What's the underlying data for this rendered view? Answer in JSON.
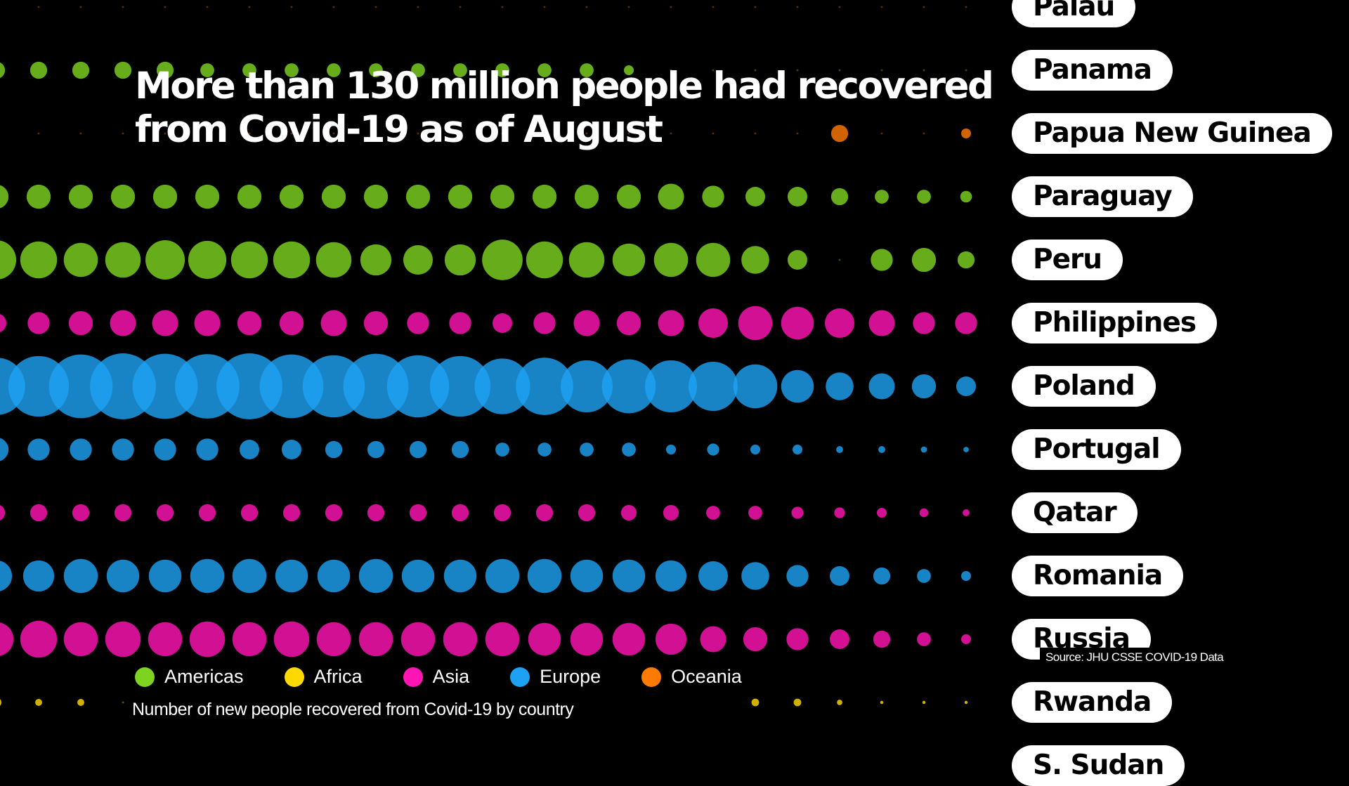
{
  "title": "More than 130 million people had recovered from Covid-19 as of August",
  "subtitle": "Number of new people recovered from Covid-19 by country",
  "source": "Source: JHU CSSE COVID-19 Data",
  "legend": [
    {
      "label": "Americas",
      "color": "#7ED321"
    },
    {
      "label": "Africa",
      "color": "#FFD800"
    },
    {
      "label": "Asia",
      "color": "#FF14B4"
    },
    {
      "label": "Europe",
      "color": "#1DA1F2"
    },
    {
      "label": "Oceania",
      "color": "#FF7A00"
    }
  ],
  "chart_data": {
    "type": "scatter",
    "description_of_encoding": "",
    "countries": [
      "Palau",
      "Panama",
      "Papua New Guinea",
      "Paraguay",
      "Peru",
      "Philippines",
      "Poland",
      "Portugal",
      "Qatar",
      "Romania",
      "Russia",
      "Rwanda",
      "S. Sudan"
    ],
    "series": [
      {
        "country": "Palau",
        "region": "Oceania",
        "values": [
          0,
          0,
          0,
          0,
          0,
          0,
          0,
          0,
          0,
          0,
          0,
          0,
          0,
          0,
          0,
          0,
          0,
          0,
          0,
          0,
          0,
          0,
          0,
          0
        ]
      },
      {
        "country": "Panama",
        "region": "Americas",
        "values": [
          3,
          3,
          3,
          3,
          3,
          2,
          2,
          2,
          2,
          2,
          2,
          2,
          2,
          2,
          2,
          1,
          0,
          0,
          0,
          0,
          0,
          0,
          0,
          0
        ]
      },
      {
        "country": "Papua New Guinea",
        "region": "Oceania",
        "values": [
          0,
          0,
          0,
          0,
          0,
          0,
          0,
          0,
          0,
          0,
          0,
          0,
          0,
          0,
          0,
          0,
          0,
          0,
          0,
          0,
          3,
          0,
          0,
          1
        ]
      },
      {
        "country": "Paraguay",
        "region": "Americas",
        "values": [
          6,
          6,
          6,
          6,
          6,
          6,
          6,
          6,
          6,
          6,
          6,
          6,
          6,
          6,
          6,
          6,
          7,
          5,
          4,
          4,
          3,
          2,
          2,
          1.4
        ]
      },
      {
        "country": "Peru",
        "region": "Americas",
        "values": [
          16,
          14,
          12,
          13,
          16,
          15,
          14,
          14,
          13,
          10,
          9,
          10,
          17,
          14,
          13,
          11,
          12,
          12,
          8,
          4,
          0,
          5,
          6,
          3
        ]
      },
      {
        "country": "Philippines",
        "region": "Asia",
        "values": [
          4,
          5,
          6,
          7,
          7,
          7,
          6,
          6,
          7,
          6,
          5,
          5,
          4,
          5,
          7,
          6,
          7,
          9,
          12,
          11,
          9,
          7,
          5,
          5
        ]
      },
      {
        "country": "Poland",
        "region": "Europe",
        "values": [
          34,
          38,
          42,
          45,
          44,
          43,
          45,
          42,
          40,
          44,
          40,
          38,
          32,
          34,
          28,
          30,
          28,
          25,
          20,
          11,
          8,
          7,
          6,
          4
        ]
      },
      {
        "country": "Portugal",
        "region": "Europe",
        "values": [
          6,
          5,
          5,
          5,
          5,
          5,
          4,
          4,
          3,
          3,
          3,
          3,
          2,
          2,
          2,
          2,
          1,
          1.5,
          1,
          1,
          0.5,
          0.5,
          0.4,
          0.3
        ]
      },
      {
        "country": "Qatar",
        "region": "Asia",
        "values": [
          3,
          3,
          3,
          3,
          3,
          3,
          3,
          3,
          3,
          3,
          3,
          3,
          3,
          3,
          3,
          2.5,
          2.5,
          2,
          2,
          1.5,
          1.2,
          1,
          0.8,
          0.5
        ]
      },
      {
        "country": "Romania",
        "region": "Europe",
        "values": [
          10,
          10,
          12,
          11,
          11,
          12,
          12,
          11,
          11,
          12,
          11,
          11,
          12,
          12,
          11,
          11,
          10,
          9,
          8,
          5,
          4,
          3,
          2,
          1
        ]
      },
      {
        "country": "Russia",
        "region": "Asia",
        "values": [
          12,
          14,
          12,
          13,
          12,
          13,
          12,
          13,
          12,
          12,
          12,
          12,
          12,
          11,
          11,
          11,
          10,
          7,
          6,
          5,
          4,
          3,
          2,
          1
        ]
      },
      {
        "country": "Rwanda",
        "region": "Africa",
        "values": [
          1,
          0.5,
          0.5,
          0,
          0,
          0,
          0,
          0,
          0,
          0,
          0,
          0,
          0,
          0,
          0,
          0,
          1.5,
          0.6,
          0.6,
          0.6,
          0.3,
          0.1,
          0.1,
          0.1
        ]
      },
      {
        "country": "S. Sudan",
        "region": "Africa",
        "values": [
          0,
          0,
          0,
          0,
          0,
          0,
          0,
          0,
          0,
          0,
          0,
          0,
          0,
          0,
          0,
          0,
          0,
          0,
          0,
          0,
          0,
          0,
          0,
          0
        ]
      }
    ]
  }
}
